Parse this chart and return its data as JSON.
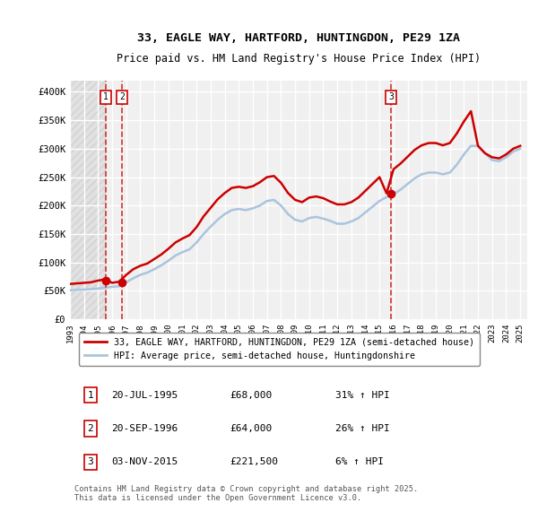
{
  "title1": "33, EAGLE WAY, HARTFORD, HUNTINGDON, PE29 1ZA",
  "title2": "Price paid vs. HM Land Registry's House Price Index (HPI)",
  "ylabel_ticks": [
    "£0",
    "£50K",
    "£100K",
    "£150K",
    "£200K",
    "£250K",
    "£300K",
    "£350K",
    "£400K"
  ],
  "ytick_vals": [
    0,
    50000,
    100000,
    150000,
    200000,
    250000,
    300000,
    350000,
    400000
  ],
  "ylim": [
    0,
    420000
  ],
  "background_color": "#ffffff",
  "plot_bg_color": "#f0f0f0",
  "grid_color": "#ffffff",
  "hpi_line_color": "#aac4dd",
  "price_line_color": "#cc0000",
  "sale_marker_color": "#cc0000",
  "dashed_line_color": "#cc0000",
  "sale_dates": [
    "1995-07-20",
    "1996-09-20",
    "2015-11-03"
  ],
  "sale_prices": [
    68000,
    64000,
    221500
  ],
  "sale_labels": [
    "1",
    "2",
    "3"
  ],
  "legend_line1": "33, EAGLE WAY, HARTFORD, HUNTINGDON, PE29 1ZA (semi-detached house)",
  "legend_line2": "HPI: Average price, semi-detached house, Huntingdonshire",
  "table_data": [
    [
      "1",
      "20-JUL-1995",
      "£68,000",
      "31% ↑ HPI"
    ],
    [
      "2",
      "20-SEP-1996",
      "£64,000",
      "26% ↑ HPI"
    ],
    [
      "3",
      "03-NOV-2015",
      "£221,500",
      "6% ↑ HPI"
    ]
  ],
  "footnote": "Contains HM Land Registry data © Crown copyright and database right 2025.\nThis data is licensed under the Open Government Licence v3.0.",
  "hpi_years": [
    1993,
    1993.5,
    1994,
    1994.5,
    1995,
    1995.5,
    1996,
    1996.5,
    1997,
    1997.5,
    1998,
    1998.5,
    1999,
    1999.5,
    2000,
    2000.5,
    2001,
    2001.5,
    2002,
    2002.5,
    2003,
    2003.5,
    2004,
    2004.5,
    2005,
    2005.5,
    2006,
    2006.5,
    2007,
    2007.5,
    2008,
    2008.5,
    2009,
    2009.5,
    2010,
    2010.5,
    2011,
    2011.5,
    2012,
    2012.5,
    2013,
    2013.5,
    2014,
    2014.5,
    2015,
    2015.5,
    2016,
    2016.5,
    2017,
    2017.5,
    2018,
    2018.5,
    2019,
    2019.5,
    2020,
    2020.5,
    2021,
    2021.5,
    2022,
    2022.5,
    2023,
    2023.5,
    2024,
    2024.5,
    2025
  ],
  "hpi_values": [
    51000,
    51500,
    52000,
    53000,
    54000,
    55500,
    57000,
    58000,
    65000,
    72000,
    78000,
    82000,
    88000,
    95000,
    103000,
    112000,
    118000,
    123000,
    135000,
    150000,
    163000,
    175000,
    185000,
    192000,
    194000,
    192000,
    195000,
    200000,
    208000,
    210000,
    200000,
    185000,
    175000,
    172000,
    178000,
    180000,
    177000,
    173000,
    168000,
    168000,
    172000,
    178000,
    188000,
    198000,
    208000,
    215000,
    220000,
    228000,
    238000,
    248000,
    255000,
    258000,
    258000,
    255000,
    258000,
    272000,
    290000,
    305000,
    305000,
    292000,
    280000,
    278000,
    285000,
    295000,
    300000
  ],
  "price_years": [
    1993,
    1993.5,
    1994,
    1994.5,
    1995,
    1995.5,
    1996,
    1996.5,
    1997,
    1997.5,
    1998,
    1998.5,
    1999,
    1999.5,
    2000,
    2000.5,
    2001,
    2001.5,
    2002,
    2002.5,
    2003,
    2003.5,
    2004,
    2004.5,
    2005,
    2005.5,
    2006,
    2006.5,
    2007,
    2007.5,
    2008,
    2008.5,
    2009,
    2009.5,
    2010,
    2010.5,
    2011,
    2011.5,
    2012,
    2012.5,
    2013,
    2013.5,
    2014,
    2014.5,
    2015,
    2015.5,
    2016,
    2016.5,
    2017,
    2017.5,
    2018,
    2018.5,
    2019,
    2019.5,
    2020,
    2020.5,
    2021,
    2021.5,
    2022,
    2022.5,
    2023,
    2023.5,
    2024,
    2024.5,
    2025
  ],
  "price_values": [
    62000,
    63000,
    64000,
    65000,
    68000,
    70000,
    64000,
    66000,
    78000,
    88000,
    94000,
    98000,
    106000,
    114000,
    124000,
    135000,
    142000,
    148000,
    162000,
    181000,
    196000,
    211000,
    222000,
    231000,
    233000,
    231000,
    234000,
    241000,
    250000,
    252000,
    240000,
    222000,
    210000,
    206000,
    214000,
    216000,
    213000,
    207000,
    202000,
    202000,
    206000,
    214000,
    226000,
    238000,
    250000,
    221500,
    264000,
    274000,
    286000,
    298000,
    306000,
    310000,
    310000,
    306000,
    310000,
    327000,
    348000,
    366000,
    305000,
    292000,
    285000,
    283000,
    290000,
    300000,
    305000
  ],
  "xlim_left": 1993,
  "xlim_right": 2025.5,
  "xtick_years": [
    1993,
    1994,
    1995,
    1996,
    1997,
    1998,
    1999,
    2000,
    2001,
    2002,
    2003,
    2004,
    2005,
    2006,
    2007,
    2008,
    2009,
    2010,
    2011,
    2012,
    2013,
    2014,
    2015,
    2016,
    2017,
    2018,
    2019,
    2020,
    2021,
    2022,
    2023,
    2024,
    2025
  ]
}
